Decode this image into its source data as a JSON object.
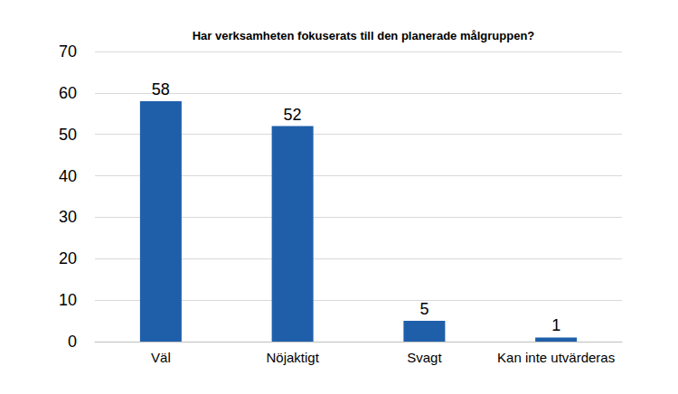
{
  "chart_data": {
    "type": "bar",
    "title": "Har verksamheten fokuserats till den planerade målgruppen?",
    "categories": [
      "Väl",
      "Nöjaktigt",
      "Svagt",
      "Kan inte utvärderas"
    ],
    "values": [
      58,
      52,
      5,
      1
    ],
    "color": "#1f5faa",
    "ylim": [
      0,
      70
    ],
    "yticks": [
      0,
      10,
      20,
      30,
      40,
      50,
      60,
      70
    ],
    "grid": true,
    "data_labels": true
  }
}
